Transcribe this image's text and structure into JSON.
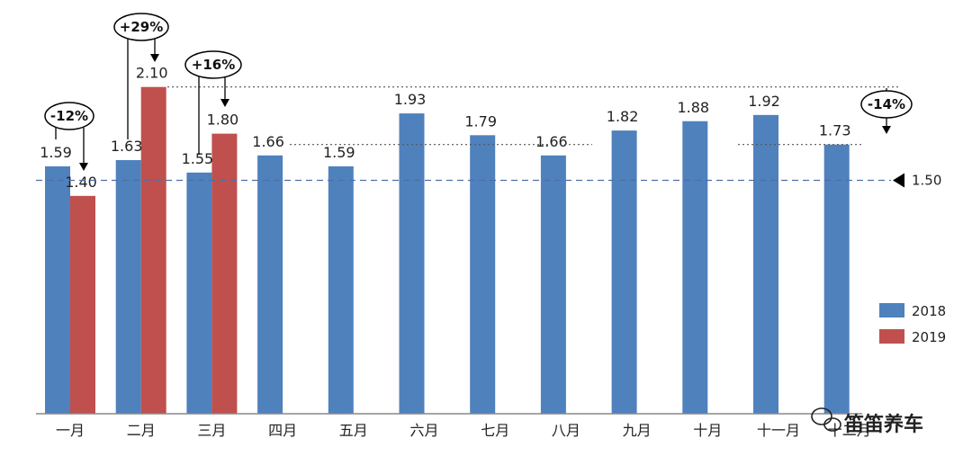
{
  "chart_data": {
    "type": "bar",
    "categories": [
      "一月",
      "二月",
      "三月",
      "四月",
      "五月",
      "六月",
      "七月",
      "八月",
      "九月",
      "十月",
      "十一月",
      "十二月"
    ],
    "series": [
      {
        "name": "2018",
        "color": "#4f81bd",
        "values": [
          1.59,
          1.63,
          1.55,
          1.66,
          1.59,
          1.93,
          1.79,
          1.66,
          1.82,
          1.88,
          1.92,
          1.73
        ]
      },
      {
        "name": "2019",
        "color": "#c0504d",
        "values": [
          1.4,
          2.1,
          1.8,
          null,
          null,
          null,
          null,
          null,
          null,
          null,
          null,
          null
        ]
      }
    ],
    "value_labels": {
      "2018": [
        "1.59",
        "1.63",
        "1.55",
        "1.66",
        "1.59",
        "1.93",
        "1.79",
        "1.66",
        "1.82",
        "1.88",
        "1.92",
        "1.73"
      ],
      "2019": [
        "1.40",
        "2.10",
        "1.80"
      ]
    },
    "reference_line": {
      "value": 1.5,
      "label": "1.50"
    },
    "annotations": [
      "-12%",
      "+29%",
      "+16%",
      "-14%"
    ],
    "legend_position": "right",
    "ylim": [
      0,
      2.3
    ],
    "grid": false
  },
  "watermark": {
    "text": "笛笛养车"
  }
}
